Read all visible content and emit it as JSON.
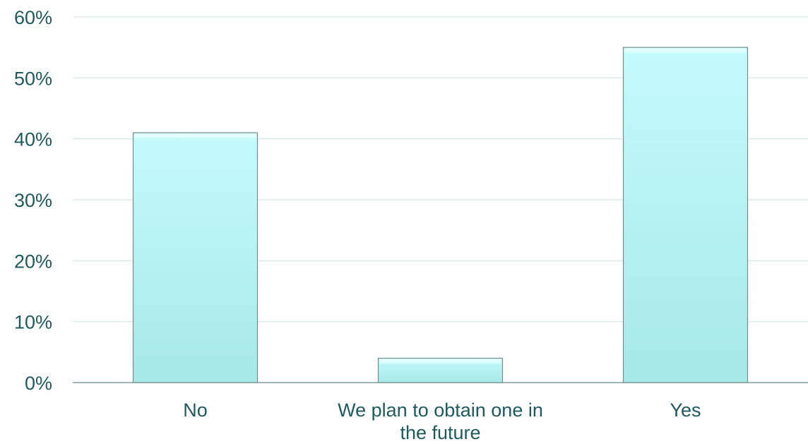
{
  "chart_data": {
    "type": "bar",
    "title": "",
    "xlabel": "",
    "ylabel": "",
    "categories": [
      [
        "No"
      ],
      [
        "We plan to obtain one in",
        "the future"
      ],
      [
        "Yes"
      ]
    ],
    "values": [
      41,
      4,
      55
    ],
    "ylim": [
      0,
      60
    ],
    "yticks": [
      0,
      10,
      20,
      30,
      40,
      50,
      60
    ],
    "ytick_labels": [
      "0%",
      "10%",
      "20%",
      "30%",
      "40%",
      "50%",
      "60%"
    ],
    "grid": true,
    "legend": "none",
    "colors": {
      "bar_top": "#c4fbfb",
      "bar_bottom": "#a6e9e6",
      "bar_edge": "#7a8c8c",
      "text": "#1f5a60",
      "grid": "#d8e6e6",
      "axis": "#7f9ea0"
    }
  }
}
